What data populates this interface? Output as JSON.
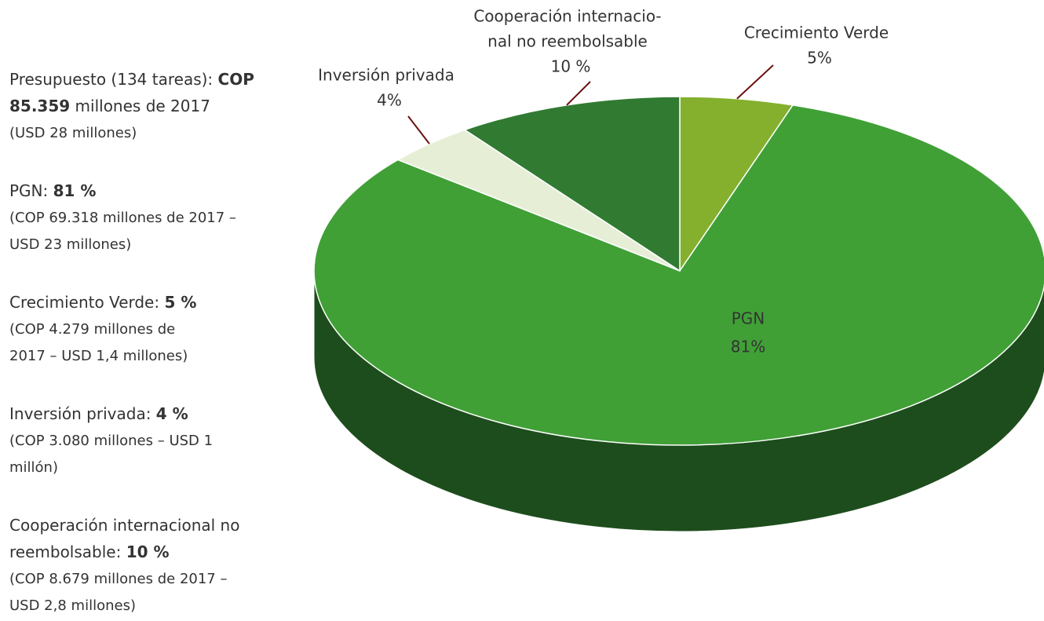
{
  "chart_data": {
    "type": "pie",
    "categories": [
      [
        "Crecimiento Verde"
      ],
      [
        "PGN"
      ],
      [
        "Inversión privada"
      ],
      [
        "Cooperación internacio-",
        "nal no reembolsable"
      ]
    ],
    "values": [
      5,
      81,
      4,
      10
    ],
    "value_labels": [
      "5%",
      "81%",
      "4%",
      "10 %"
    ],
    "colors": [
      "#84b02e",
      "#40a036",
      "#e6efd6",
      "#317a32"
    ],
    "side_color": "#1d4d1c"
  },
  "notes": [
    {
      "lines": [
        [
          {
            "t": "Presupuesto (134 tareas): ",
            "bold": false
          },
          {
            "t": "COP",
            "bold": true
          }
        ],
        [
          {
            "t": "85.359",
            "bold": true
          },
          {
            "t": " millones de 2017",
            "bold": false
          }
        ]
      ],
      "details": [
        "(USD 28 millones)"
      ]
    },
    {
      "lines": [
        [
          {
            "t": "PGN: ",
            "bold": false
          },
          {
            "t": "81 %",
            "bold": true
          }
        ]
      ],
      "details": [
        "(COP 69.318 millones de 2017 –",
        "USD 23 millones)"
      ]
    },
    {
      "lines": [
        [
          {
            "t": "Crecimiento Verde: ",
            "bold": false
          },
          {
            "t": "5 %",
            "bold": true
          }
        ]
      ],
      "details": [
        "(COP 4.279 millones de",
        "2017 – USD 1,4 millones)"
      ]
    },
    {
      "lines": [
        [
          {
            "t": "Inversión privada: ",
            "bold": false
          },
          {
            "t": "4 %",
            "bold": true
          }
        ]
      ],
      "details": [
        "(COP 3.080 millones – USD 1",
        "millón)"
      ]
    },
    {
      "lines": [
        [
          {
            "t": "Cooperación internacional no",
            "bold": false
          }
        ],
        [
          {
            "t": "reembolsable: ",
            "bold": false
          },
          {
            "t": "10 %",
            "bold": true
          }
        ]
      ],
      "details": [
        "(COP 8.679 millones de 2017 –",
        "USD 2,8 millones)"
      ]
    }
  ]
}
